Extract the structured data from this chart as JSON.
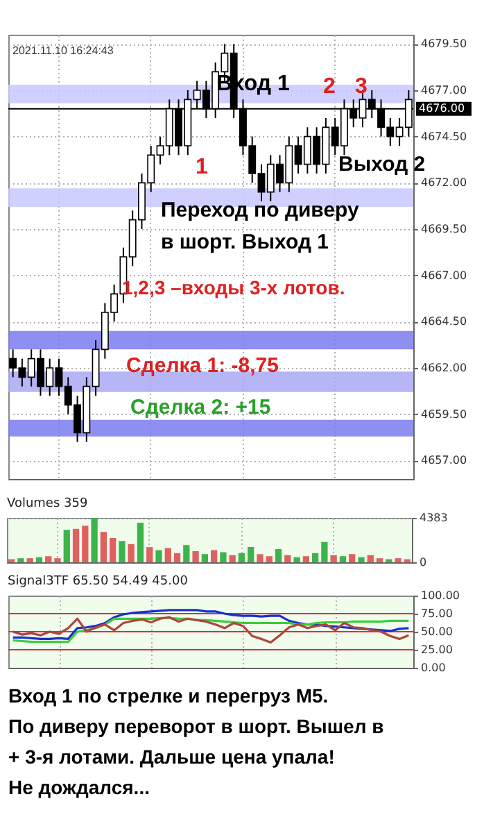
{
  "chart_data": [
    {
      "type": "candlestick",
      "categories": [
        null,
        null,
        null,
        null,
        null,
        null,
        null,
        null,
        null,
        null,
        null,
        null,
        null,
        null,
        null,
        null,
        null,
        null,
        null,
        null,
        null,
        null,
        null,
        null,
        null,
        null,
        null,
        null,
        null,
        null,
        null,
        null,
        null,
        null,
        null,
        null,
        null,
        null,
        null,
        null,
        null,
        null,
        null,
        null
      ],
      "ohlc": [
        [
          4662.5,
          4663,
          4661.5,
          4662
        ],
        [
          4662,
          4662.5,
          4661,
          4661.5
        ],
        [
          4661.5,
          4663,
          4661,
          4662.5
        ],
        [
          4662.5,
          4663,
          4660.5,
          4661
        ],
        [
          4661,
          4662.5,
          4660.5,
          4662
        ],
        [
          4662,
          4662.5,
          4660.5,
          4661
        ],
        [
          4661,
          4661.5,
          4659.5,
          4660
        ],
        [
          4660,
          4660.5,
          4658,
          4658.5
        ],
        [
          4658.5,
          4661.5,
          4658,
          4661
        ],
        [
          4661,
          4663.5,
          4660.5,
          4663
        ],
        [
          4663,
          4665.5,
          4662.5,
          4665
        ],
        [
          4665,
          4666.5,
          4664.5,
          4666
        ],
        [
          4666,
          4668.5,
          4665.5,
          4668
        ],
        [
          4668,
          4670.5,
          4667.5,
          4670
        ],
        [
          4670,
          4672.5,
          4669.5,
          4672
        ],
        [
          4672,
          4674,
          4671.5,
          4673.5
        ],
        [
          4673.5,
          4674.5,
          4673,
          4674
        ],
        [
          4674,
          4676.5,
          4673.5,
          4676
        ],
        [
          4676,
          4676.5,
          4673.5,
          4674
        ],
        [
          4674,
          4677,
          4673.5,
          4676.5
        ],
        [
          4676.5,
          4677.5,
          4676,
          4677
        ],
        [
          4677,
          4677.5,
          4675.5,
          4676
        ],
        [
          4676,
          4678.5,
          4675.5,
          4678
        ],
        [
          4678,
          4679.5,
          4677.5,
          4679
        ],
        [
          4679,
          4679.5,
          4675.5,
          4676
        ],
        [
          4676,
          4676.5,
          4673.5,
          4674
        ],
        [
          4674,
          4674.5,
          4672,
          4672.5
        ],
        [
          4672.5,
          4673,
          4671,
          4671.5
        ],
        [
          4671.5,
          4673.5,
          4671,
          4673
        ],
        [
          4673,
          4673.5,
          4671.5,
          4672
        ],
        [
          4672,
          4674.5,
          4671.5,
          4674
        ],
        [
          4674,
          4674.5,
          4672.5,
          4673
        ],
        [
          4673,
          4675,
          4672.5,
          4674.5
        ],
        [
          4674.5,
          4675,
          4672.5,
          4673
        ],
        [
          4673,
          4675.5,
          4672.5,
          4675
        ],
        [
          4675,
          4675.5,
          4673.5,
          4674
        ],
        [
          4674,
          4676.5,
          4673.5,
          4676
        ],
        [
          4676,
          4676.5,
          4675,
          4675.5
        ],
        [
          4675.5,
          4677,
          4675,
          4676.5
        ],
        [
          4676.5,
          4677,
          4675.5,
          4676
        ],
        [
          4676,
          4676.5,
          4674.5,
          4675
        ],
        [
          4675,
          4675.5,
          4674,
          4674.5
        ],
        [
          4674.5,
          4675.5,
          4674,
          4675
        ],
        [
          4675,
          4677,
          4674.5,
          4676.5
        ]
      ],
      "ylim": [
        4656,
        4680
      ],
      "yticks": [
        {
          "value": 4657,
          "label": "4657.00"
        },
        {
          "value": 4659.5,
          "label": "4659.50"
        },
        {
          "value": 4662,
          "label": "4662.00"
        },
        {
          "value": 4664.5,
          "label": "4664.50"
        },
        {
          "value": 4667,
          "label": "4667.00"
        },
        {
          "value": 4669.5,
          "label": "4669.50"
        },
        {
          "value": 4672,
          "label": "4672.00"
        },
        {
          "value": 4674.5,
          "label": "4674.50"
        },
        {
          "value": 4677,
          "label": "4677.00"
        },
        {
          "value": 4679.5,
          "label": "4679.50"
        }
      ],
      "ref_lines": [
        {
          "axis": "y",
          "value": 4676,
          "label": "4676.00",
          "color": "#000000"
        }
      ],
      "bands": [
        {
          "axis": "y",
          "from": 4676.3,
          "to": 4677.3,
          "color": "#c8c8ff"
        },
        {
          "axis": "y",
          "from": 4670.7,
          "to": 4671.7,
          "color": "#c8c8ff"
        },
        {
          "axis": "y",
          "from": 4663,
          "to": 4664,
          "color": "#7b7bf0"
        },
        {
          "axis": "y",
          "from": 4660.7,
          "to": 4661.8,
          "color": "#a9a9f5"
        },
        {
          "axis": "y",
          "from": 4658.3,
          "to": 4659.2,
          "color": "#7b7bf0"
        }
      ],
      "annotations": [
        "2021.11.10 16:24:43",
        "Вход 1",
        "2",
        "3",
        "1",
        "Выход 2",
        "Переход по диверу",
        "в шорт. Выход 1",
        "1,2,3 –входы 3-х лотов.",
        "Сделка 1: -8,75",
        "Сделка 2: +15"
      ],
      "grid": true,
      "tick_labels": "y"
    },
    {
      "type": "bar",
      "title": "Volumes 359",
      "categories": [
        null,
        null,
        null,
        null,
        null,
        null,
        null,
        null,
        null,
        null,
        null,
        null,
        null,
        null,
        null,
        null,
        null,
        null,
        null,
        null,
        null,
        null,
        null,
        null,
        null,
        null,
        null,
        null,
        null,
        null,
        null,
        null,
        null,
        null,
        null,
        null,
        null,
        null,
        null,
        null,
        null,
        null,
        null,
        null
      ],
      "values": [
        300,
        400,
        400,
        500,
        600,
        400,
        3200,
        3300,
        3600,
        4383,
        3000,
        2400,
        2100,
        1800,
        3900,
        1500,
        1200,
        1400,
        900,
        1700,
        1100,
        800,
        1200,
        1000,
        700,
        900,
        1500,
        800,
        600,
        1300,
        700,
        500,
        600,
        900,
        2000,
        700,
        600,
        800,
        500,
        700,
        400,
        300,
        400,
        300
      ],
      "colors": [
        "#e06060",
        "#3cb44b",
        "#e06060",
        "#3cb44b",
        "#e06060",
        "#e06060",
        "#3cb44b",
        "#e06060",
        "#e06060",
        "#3cb44b",
        "#e06060",
        "#e06060",
        "#3cb44b",
        "#e06060",
        "#3cb44b",
        "#e06060",
        "#3cb44b",
        "#e06060",
        "#e06060",
        "#3cb44b",
        "#e06060",
        "#3cb44b",
        "#e06060",
        "#3cb44b",
        "#e06060",
        "#3cb44b",
        "#3cb44b",
        "#e06060",
        "#e06060",
        "#3cb44b",
        "#e06060",
        "#3cb44b",
        "#e06060",
        "#3cb44b",
        "#3cb44b",
        "#e06060",
        "#3cb44b",
        "#e06060",
        "#3cb44b",
        "#e06060",
        "#e06060",
        "#3cb44b",
        "#e06060",
        "#e06060"
      ],
      "ylim": [
        0,
        4383
      ],
      "yticks": [
        0,
        4383
      ],
      "grid": true,
      "tick_labels": "y"
    },
    {
      "type": "line",
      "title": "Signal3TF 65.50 54.49 45.00",
      "categories": [
        null,
        null,
        null,
        null,
        null,
        null,
        null,
        null,
        null,
        null,
        null,
        null,
        null,
        null,
        null,
        null,
        null,
        null,
        null,
        null,
        null,
        null,
        null,
        null,
        null,
        null,
        null,
        null,
        null,
        null,
        null,
        null,
        null,
        null,
        null,
        null,
        null,
        null,
        null,
        null,
        null,
        null,
        null,
        null
      ],
      "series": [
        {
          "color": "#1a2fd0",
          "values": [
            42,
            42,
            41,
            40,
            40,
            41,
            40,
            55,
            56,
            58,
            62,
            70,
            74,
            76,
            77,
            78,
            79,
            80,
            80,
            80,
            80,
            78,
            78,
            75,
            73,
            72,
            72,
            71,
            72,
            72,
            65,
            62,
            60,
            60,
            58,
            57,
            56,
            55,
            54,
            53,
            52,
            51,
            54,
            55
          ]
        },
        {
          "color": "#3ccc3c",
          "values": [
            38,
            37,
            36,
            36,
            36,
            36,
            36,
            50,
            52,
            55,
            60,
            68,
            68,
            68,
            68,
            68,
            69,
            69,
            68,
            68,
            66,
            66,
            65,
            64,
            63,
            62,
            62,
            62,
            62,
            62,
            62,
            60,
            60,
            62,
            63,
            63,
            63,
            64,
            64,
            64,
            64,
            65,
            65,
            65
          ]
        },
        {
          "color": "#b0453a",
          "values": [
            50,
            46,
            48,
            45,
            50,
            47,
            55,
            68,
            50,
            56,
            60,
            52,
            62,
            65,
            67,
            63,
            68,
            70,
            64,
            68,
            66,
            64,
            60,
            55,
            62,
            58,
            44,
            40,
            35,
            45,
            56,
            60,
            55,
            58,
            60,
            52,
            62,
            56,
            55,
            52,
            50,
            44,
            40,
            45
          ]
        }
      ],
      "ylim": [
        0,
        100
      ],
      "yticks": [
        {
          "value": 0,
          "label": "0.00"
        },
        {
          "value": 25,
          "label": "25.00"
        },
        {
          "value": 50,
          "label": "50.00"
        },
        {
          "value": 75,
          "label": "75.00"
        },
        {
          "value": 100,
          "label": "100.00"
        }
      ],
      "ref_lines": [
        {
          "axis": "y",
          "value": 25,
          "color": "#e03030"
        },
        {
          "axis": "y",
          "value": 50,
          "color": "#e03030"
        },
        {
          "axis": "y",
          "value": 75,
          "color": "#e03030"
        }
      ],
      "annotations": [
        "Вход 1 по стрелке и перегруз М5.",
        "По диверу переворот в шорт. Вышел в",
        "+ 3-я лотами. Дальше цена упала!",
        "Не дождался..."
      ],
      "grid": "x",
      "tick_labels": "y"
    }
  ]
}
